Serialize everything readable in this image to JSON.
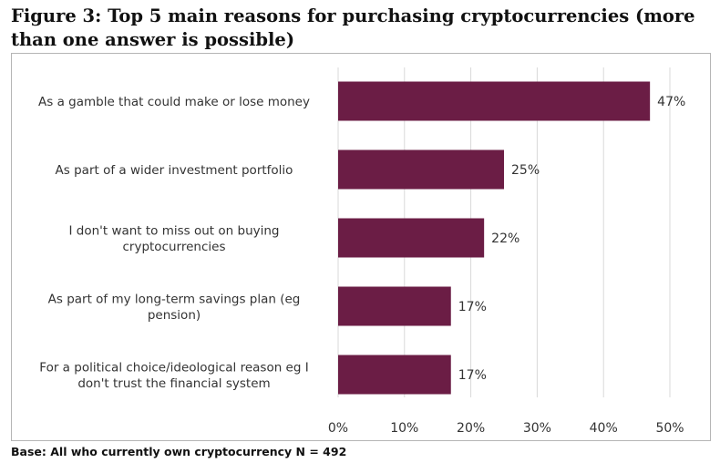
{
  "title": "Figure 3: Top 5 main reasons for purchasing cryptocurrencies (more than one answer is possible)",
  "footnote": "Base: All who currently own cryptocurrency N = 492",
  "chart_data": {
    "type": "bar",
    "orientation": "horizontal",
    "categories": [
      "As a gamble that could make or lose money",
      "As part of a wider investment portfolio",
      "I don't want to miss out on buying cryptocurrencies",
      "As part of my long-term savings plan (eg pension)",
      "For a political choice/ideological reason eg I don't trust the financial system"
    ],
    "category_lines": [
      [
        "As a gamble that could make or lose money"
      ],
      [
        "As part of a wider investment portfolio"
      ],
      [
        "I don't want to miss out on buying",
        "cryptocurrencies"
      ],
      [
        "As part of my long-term savings plan (eg",
        "pension)"
      ],
      [
        "For a political choice/ideological reason eg I",
        "don't trust the financial system"
      ]
    ],
    "values": [
      47,
      25,
      22,
      17,
      17
    ],
    "value_labels": [
      "47%",
      "25%",
      "22%",
      "17%",
      "17%"
    ],
    "xlim": [
      0,
      50
    ],
    "ticks": [
      0,
      10,
      20,
      30,
      40,
      50
    ],
    "tick_labels": [
      "0%",
      "10%",
      "20%",
      "30%",
      "40%",
      "50%"
    ],
    "grid": "vertical",
    "bar_color": "#6b1d45",
    "grid_color": "#d9d9d9"
  }
}
